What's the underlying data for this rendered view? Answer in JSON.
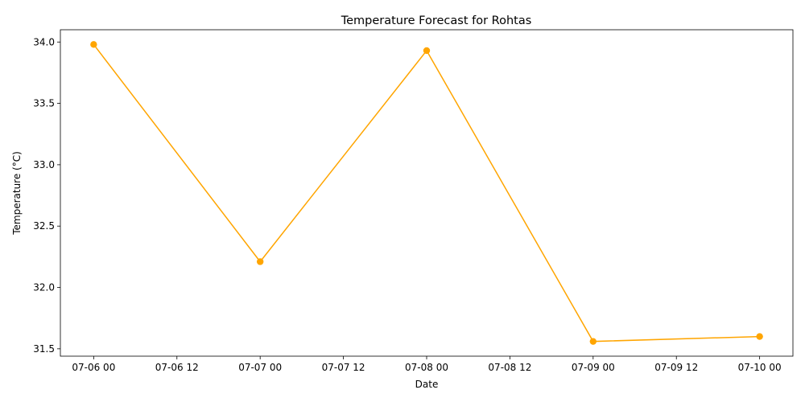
{
  "chart_data": {
    "type": "line",
    "title": "Temperature Forecast for Rohtas",
    "xlabel": "Date",
    "ylabel": "Temperature (°C)",
    "x": [
      "07-06 00",
      "07-07 00",
      "07-08 00",
      "07-09 00",
      "07-10 00"
    ],
    "x_hours": [
      0,
      24,
      48,
      72,
      96
    ],
    "series": [
      {
        "values": [
          33.98,
          32.21,
          33.93,
          31.56,
          31.6
        ]
      }
    ],
    "x_ticks": [
      {
        "hours": 0,
        "label": "07-06 00"
      },
      {
        "hours": 12,
        "label": "07-06 12"
      },
      {
        "hours": 24,
        "label": "07-07 00"
      },
      {
        "hours": 36,
        "label": "07-07 12"
      },
      {
        "hours": 48,
        "label": "07-08 00"
      },
      {
        "hours": 60,
        "label": "07-08 12"
      },
      {
        "hours": 72,
        "label": "07-09 00"
      },
      {
        "hours": 84,
        "label": "07-09 12"
      },
      {
        "hours": 96,
        "label": "07-10 00"
      }
    ],
    "y_ticks": [
      31.5,
      32.0,
      32.5,
      33.0,
      33.5,
      34.0
    ],
    "y_tick_labels": [
      "31.5",
      "32.0",
      "32.5",
      "33.0",
      "33.5",
      "34.0"
    ],
    "xlim_hours": [
      -4.8,
      100.8
    ],
    "ylim": [
      31.44,
      34.1
    ],
    "grid": false,
    "line_color": "#ffa500",
    "marker": "circle"
  }
}
